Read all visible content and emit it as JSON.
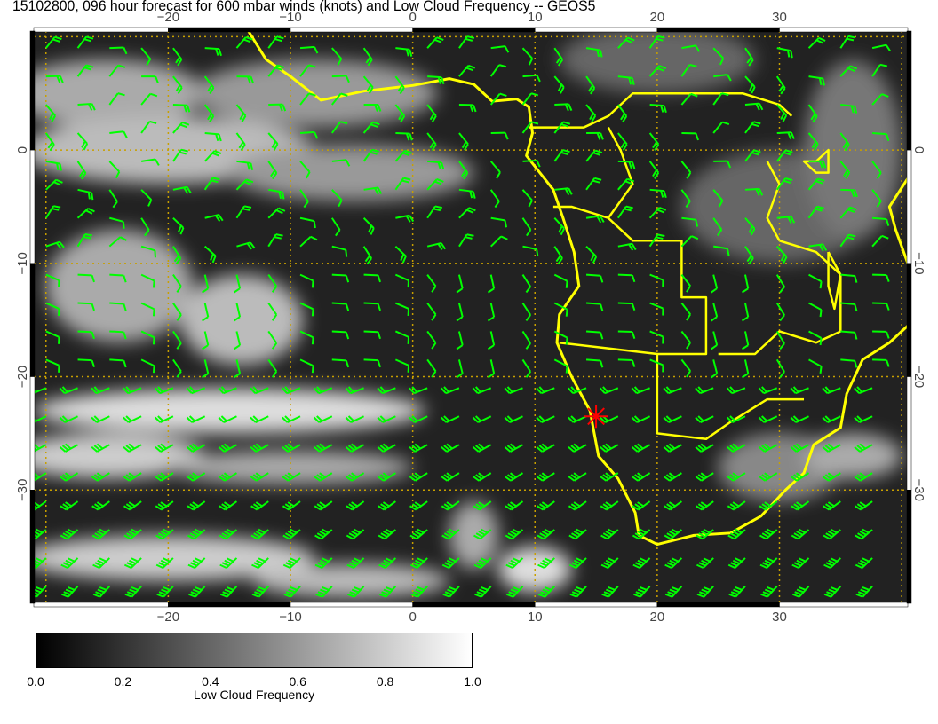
{
  "title": "15102800, 096 hour forecast for 600 mbar winds (knots) and Low Cloud Frequency -- GEOS5",
  "map": {
    "lon_range": [
      -31,
      40.5
    ],
    "lat_range": [
      10.5,
      -40
    ],
    "lon_ticks": [
      {
        "value": -20,
        "label": "−20"
      },
      {
        "value": -10,
        "label": "−10"
      },
      {
        "value": 0,
        "label": "0"
      },
      {
        "value": 10,
        "label": "10"
      },
      {
        "value": 20,
        "label": "20"
      },
      {
        "value": 30,
        "label": "30"
      }
    ],
    "lat_ticks": [
      {
        "value": 0,
        "label": "0"
      },
      {
        "value": -10,
        "label": "−10"
      },
      {
        "value": -20,
        "label": "−20"
      },
      {
        "value": -30,
        "label": "−30"
      }
    ],
    "coastline_color": "#ffff00",
    "barb_color": "#00ff00",
    "gridline_color": "#c8a000",
    "marker": {
      "lon": 15,
      "lat": -23.5,
      "color": "#ff0000",
      "icon": "asterisk"
    }
  },
  "colorbar": {
    "title": "Low Cloud Frequency",
    "labels": [
      "0.0",
      "0.2",
      "0.4",
      "0.6",
      "0.8",
      "1.0"
    ],
    "range": [
      0,
      1
    ],
    "colormap": "grayscale black-to-white"
  }
}
